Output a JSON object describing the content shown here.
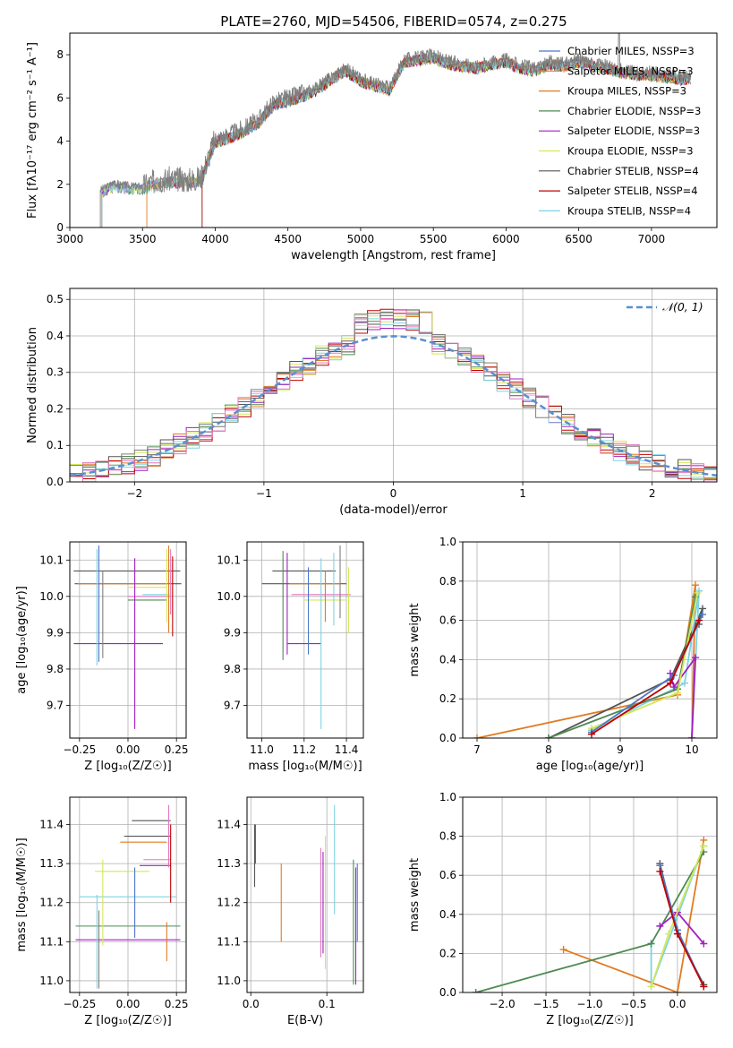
{
  "figure_title": "PLATE=2760, MJD=54506, FIBERID=0574, z=0.275",
  "colors": [
    "#4c78c8",
    "#7f7f7f",
    "#e07b22",
    "#4f8a52",
    "#a020c0",
    "#d4e85a",
    "#555555",
    "#c00000",
    "#7fd3e0",
    "#e377c2"
  ],
  "chart_data": [
    {
      "id": "spectrum",
      "type": "line",
      "title": "PLATE=2760, MJD=54506, FIBERID=0574, z=0.275",
      "xlabel": "wavelength [Angstrom, rest frame]",
      "ylabel": "Flux [fλ10⁻¹⁷ erg cm⁻² s⁻¹ A⁻¹]",
      "xlim": [
        3000,
        7450
      ],
      "ylim": [
        0,
        9
      ],
      "xticks": [
        "3000",
        "3500",
        "4000",
        "4500",
        "5000",
        "5500",
        "6000",
        "6500",
        "7000"
      ],
      "yticks": [
        "0",
        "2",
        "4",
        "6",
        "8"
      ],
      "grid": false,
      "legend_placement": "upper-right",
      "legend": [
        "Chabrier MILES, NSSP=3",
        "Salpeter MILES, NSSP=3",
        "Kroupa MILES, NSSP=3",
        "Chabrier ELODIE, NSSP=3",
        "Salpeter ELODIE, NSSP=3",
        "Kroupa ELODIE, NSSP=3",
        "Chabrier STELIB, NSSP=4",
        "Salpeter STELIB, NSSP=4",
        "Kroupa STELIB, NSSP=4"
      ],
      "data_x": [
        3210,
        3300,
        3400,
        3500,
        3600,
        3700,
        3800,
        3900,
        4000,
        4100,
        4200,
        4300,
        4400,
        4500,
        4600,
        4700,
        4800,
        4900,
        5000,
        5100,
        5200,
        5300,
        5400,
        5500,
        5600,
        5700,
        5800,
        5900,
        6000,
        6100,
        6200,
        6300,
        6400,
        6500,
        6600,
        6700,
        6800,
        6900,
        7000,
        7100,
        7200,
        7300
      ],
      "data_y": [
        1.75,
        2.05,
        1.95,
        1.9,
        2.2,
        2.25,
        2.2,
        2.3,
        4.1,
        4.3,
        4.6,
        5.0,
        5.8,
        6.0,
        6.2,
        6.5,
        7.0,
        7.4,
        6.9,
        6.7,
        6.5,
        7.8,
        7.9,
        8.0,
        7.7,
        7.6,
        7.5,
        7.7,
        7.8,
        7.5,
        7.4,
        7.7,
        7.6,
        7.8,
        7.6,
        7.5,
        7.3,
        7.2,
        7.2,
        7.1,
        7.0,
        7.0
      ],
      "model_start_x": [
        3220,
        3530,
        3530,
        3220,
        3220,
        3220,
        3910,
        3910,
        3220
      ]
    },
    {
      "id": "residuals",
      "type": "line",
      "xlabel": "(data-model)/error",
      "ylabel": "Normed distribution",
      "xlim": [
        -2.5,
        2.5
      ],
      "ylim": [
        0,
        0.53
      ],
      "xticks": [
        "−2",
        "−1",
        "0",
        "1",
        "2"
      ],
      "yticks": [
        "0.0",
        "0.1",
        "0.2",
        "0.3",
        "0.4",
        "0.5"
      ],
      "grid": true,
      "legend_placement": "upper-right",
      "legend": [
        "𝒩(0, 1)"
      ],
      "reference_curve": "normal(0,1) pdf"
    },
    {
      "id": "age-vs-z",
      "type": "scatter",
      "xlabel": "Z [log₁₀(Z/Z☉)]",
      "ylabel": "age  [log₁₀(age/yr)]",
      "xlim": [
        -0.3,
        0.3
      ],
      "ylim": [
        9.61,
        10.15
      ],
      "xticks": [
        "−0.25",
        "0.00",
        "0.25"
      ],
      "yticks": [
        "9.7",
        "9.8",
        "9.9",
        "10.0",
        "10.1"
      ],
      "grid": true,
      "errorbars": [
        {
          "x": -0.005,
          "y": 10.07,
          "xerr": 0.275,
          "yerr": 0
        },
        {
          "x": 0.0,
          "y": 10.035,
          "xerr": 0.275,
          "yerr": 0
        },
        {
          "x": -0.03,
          "y": 10.035,
          "xerr": 0.23,
          "yerr": 0
        },
        {
          "x": 0.11,
          "y": 10.0,
          "xerr": 0.11,
          "yerr": 0
        },
        {
          "x": -0.05,
          "y": 9.87,
          "xerr": 0.23,
          "yerr": 0
        },
        {
          "x": 0.1,
          "y": 10.025,
          "xerr": 0.1,
          "yerr": 0
        },
        {
          "x": 0.145,
          "y": 10.005,
          "xerr": 0.07,
          "yerr": 0
        },
        {
          "x": 0.1,
          "y": 9.99,
          "xerr": 0.1,
          "yerr": 0
        },
        {
          "x": 0.035,
          "y": 9.87,
          "xerr": 0,
          "yerr": 0.235
        },
        {
          "x": -0.15,
          "y": 9.98,
          "xerr": 0,
          "yerr": 0.16
        },
        {
          "x": -0.16,
          "y": 9.97,
          "xerr": 0,
          "yerr": 0.16
        },
        {
          "x": -0.13,
          "y": 9.95,
          "xerr": 0,
          "yerr": 0.12
        },
        {
          "x": 0.2,
          "y": 10.03,
          "xerr": 0,
          "yerr": 0.1
        },
        {
          "x": 0.21,
          "y": 10.02,
          "xerr": 0,
          "yerr": 0.12
        },
        {
          "x": 0.22,
          "y": 10.04,
          "xerr": 0,
          "yerr": 0.09
        },
        {
          "x": 0.23,
          "y": 10.0,
          "xerr": 0,
          "yerr": 0.11
        }
      ]
    },
    {
      "id": "age-vs-mass",
      "type": "scatter",
      "xlabel": "mass [log₁₀(M/M☉)]",
      "ylabel": "",
      "xlim": [
        10.93,
        11.48
      ],
      "ylim": [
        9.61,
        10.15
      ],
      "xticks": [
        "11.0",
        "11.2",
        "11.4"
      ],
      "yticks": [
        "9.7",
        "9.8",
        "9.9",
        "10.0",
        "10.1"
      ],
      "grid": true,
      "errorbars": [
        {
          "x": 11.2,
          "y": 10.07,
          "xerr": 0.15,
          "yerr": 0
        },
        {
          "x": 11.2,
          "y": 10.035,
          "xerr": 0.2,
          "yerr": 0
        },
        {
          "x": 11.25,
          "y": 10.035,
          "xerr": 0.12,
          "yerr": 0
        },
        {
          "x": 11.28,
          "y": 10.005,
          "xerr": 0.14,
          "yerr": 0
        },
        {
          "x": 11.2,
          "y": 9.87,
          "xerr": 0.08,
          "yerr": 0
        },
        {
          "x": 11.3,
          "y": 9.99,
          "xerr": 0.1,
          "yerr": 0
        },
        {
          "x": 11.28,
          "y": 9.87,
          "xerr": 0,
          "yerr": 0.235
        },
        {
          "x": 11.1,
          "y": 9.975,
          "xerr": 0,
          "yerr": 0.15
        },
        {
          "x": 11.12,
          "y": 9.98,
          "xerr": 0,
          "yerr": 0.14
        },
        {
          "x": 11.22,
          "y": 9.96,
          "xerr": 0,
          "yerr": 0.12
        },
        {
          "x": 11.34,
          "y": 10.02,
          "xerr": 0,
          "yerr": 0.1
        },
        {
          "x": 11.37,
          "y": 10.04,
          "xerr": 0,
          "yerr": 0.1
        },
        {
          "x": 11.41,
          "y": 9.99,
          "xerr": 0,
          "yerr": 0.09
        },
        {
          "x": 11.3,
          "y": 10.0,
          "xerr": 0,
          "yerr": 0.07
        }
      ]
    },
    {
      "id": "weight-vs-age",
      "type": "line",
      "xlabel": "age  [log₁₀(age/yr)]",
      "ylabel": "mass weight",
      "xlim": [
        6.8,
        10.35
      ],
      "ylim": [
        0,
        1.0
      ],
      "xticks": [
        "7",
        "8",
        "9",
        "10"
      ],
      "yticks": [
        "0.0",
        "0.2",
        "0.4",
        "0.6",
        "0.8",
        "1.0"
      ],
      "grid": true,
      "series": [
        {
          "x": [
            7.0,
            9.8,
            10.05,
            10.0
          ],
          "y": [
            0.0,
            0.22,
            0.78,
            0.0
          ]
        },
        {
          "x": [
            8.0,
            9.7,
            10.15,
            10.1
          ],
          "y": [
            0.0,
            0.3,
            0.66,
            0.58
          ]
        },
        {
          "x": [
            8.6,
            9.9,
            10.1,
            10.0
          ],
          "y": [
            0.04,
            0.28,
            0.75,
            0.0
          ]
        },
        {
          "x": [
            8.0,
            9.8,
            10.05
          ],
          "y": [
            0.0,
            0.25,
            0.72
          ]
        },
        {
          "x": [
            9.7,
            9.75,
            10.05,
            10.0
          ],
          "y": [
            0.33,
            0.26,
            0.41,
            0.0
          ]
        },
        {
          "x": [
            8.6,
            9.8,
            10.08
          ],
          "y": [
            0.05,
            0.23,
            0.74
          ]
        },
        {
          "x": [
            8.6,
            9.75,
            10.15
          ],
          "y": [
            0.03,
            0.32,
            0.63
          ]
        },
        {
          "x": [
            8.6,
            9.7,
            10.1
          ],
          "y": [
            0.02,
            0.28,
            0.6
          ]
        }
      ]
    },
    {
      "id": "mass-vs-z",
      "type": "scatter",
      "xlabel": "Z [log₁₀(Z/Z☉)]",
      "ylabel": "mass [log₁₀(M/M☉)]",
      "xlim": [
        -0.3,
        0.3
      ],
      "ylim": [
        10.97,
        11.47
      ],
      "xticks": [
        "−0.25",
        "0.00",
        "0.25"
      ],
      "yticks": [
        "11.0",
        "11.1",
        "11.2",
        "11.3",
        "11.4"
      ],
      "grid": true,
      "errorbars": [
        {
          "x": 0.12,
          "y": 11.41,
          "xerr": 0.1,
          "yerr": 0
        },
        {
          "x": 0.1,
          "y": 11.37,
          "xerr": 0.12,
          "yerr": 0
        },
        {
          "x": 0.08,
          "y": 11.355,
          "xerr": 0.12,
          "yerr": 0
        },
        {
          "x": 0.15,
          "y": 11.31,
          "xerr": 0.07,
          "yerr": 0
        },
        {
          "x": 0.14,
          "y": 11.295,
          "xerr": 0.08,
          "yerr": 0
        },
        {
          "x": -0.03,
          "y": 11.28,
          "xerr": 0.14,
          "yerr": 0
        },
        {
          "x": 0.0,
          "y": 11.215,
          "xerr": 0.25,
          "yerr": 0
        },
        {
          "x": 0.0,
          "y": 11.14,
          "xerr": 0.27,
          "yerr": 0
        },
        {
          "x": 0.0,
          "y": 11.105,
          "xerr": 0.27,
          "yerr": 0
        },
        {
          "x": 0.035,
          "y": 11.2,
          "xerr": 0,
          "yerr": 0.09
        },
        {
          "x": -0.16,
          "y": 11.1,
          "xerr": 0,
          "yerr": 0.12
        },
        {
          "x": -0.15,
          "y": 11.08,
          "xerr": 0,
          "yerr": 0.1
        },
        {
          "x": -0.13,
          "y": 11.2,
          "xerr": 0,
          "yerr": 0.11
        },
        {
          "x": 0.2,
          "y": 11.1,
          "xerr": 0,
          "yerr": 0.05
        },
        {
          "x": 0.21,
          "y": 11.37,
          "xerr": 0,
          "yerr": 0.08
        },
        {
          "x": 0.22,
          "y": 11.3,
          "xerr": 0,
          "yerr": 0.1
        }
      ]
    },
    {
      "id": "mass-vs-ebv",
      "type": "scatter",
      "xlabel": "E(B-V)",
      "ylabel": "",
      "xlim": [
        -0.005,
        0.148
      ],
      "ylim": [
        10.97,
        11.47
      ],
      "xticks": [
        "0.0",
        "0.1"
      ],
      "yticks": [
        "11.0",
        "11.1",
        "11.2",
        "11.3",
        "11.4"
      ],
      "grid": true,
      "errorbars": [
        {
          "x": 0.005,
          "y": 11.32,
          "xerr": 0,
          "yerr": 0.08
        },
        {
          "x": 0.006,
          "y": 11.35,
          "xerr": 0,
          "yerr": 0.05
        },
        {
          "x": 0.04,
          "y": 11.2,
          "xerr": 0,
          "yerr": 0.1
        },
        {
          "x": 0.092,
          "y": 11.2,
          "xerr": 0,
          "yerr": 0.14
        },
        {
          "x": 0.095,
          "y": 11.2,
          "xerr": 0,
          "yerr": 0.13
        },
        {
          "x": 0.098,
          "y": 11.2,
          "xerr": 0,
          "yerr": 0.17
        },
        {
          "x": 0.11,
          "y": 11.31,
          "xerr": 0,
          "yerr": 0.14
        },
        {
          "x": 0.135,
          "y": 11.15,
          "xerr": 0,
          "yerr": 0.16
        },
        {
          "x": 0.138,
          "y": 11.14,
          "xerr": 0,
          "yerr": 0.15
        },
        {
          "x": 0.14,
          "y": 11.2,
          "xerr": 0,
          "yerr": 0.1
        }
      ]
    },
    {
      "id": "weight-vs-z",
      "type": "line",
      "xlabel": "Z [log₁₀(Z/Z☉)]",
      "ylabel": "mass weight",
      "xlim": [
        -2.45,
        0.45
      ],
      "ylim": [
        0,
        1.0
      ],
      "xticks": [
        "−2.0",
        "−1.5",
        "−1.0",
        "−0.5",
        "0.0"
      ],
      "yticks": [
        "0.0",
        "0.2",
        "0.4",
        "0.6",
        "0.8",
        "1.0"
      ],
      "grid": true,
      "series": [
        {
          "x": [
            -1.3,
            0.0,
            0.3
          ],
          "y": [
            0.22,
            0.0,
            0.78
          ]
        },
        {
          "x": [
            -0.2,
            0.0,
            0.3
          ],
          "y": [
            0.66,
            0.3,
            0.04
          ]
        },
        {
          "x": [
            -0.3,
            -0.3,
            0.3
          ],
          "y": [
            0.25,
            0.03,
            0.75
          ]
        },
        {
          "x": [
            -2.3,
            -0.3,
            0.3
          ],
          "y": [
            0.0,
            0.25,
            0.72
          ]
        },
        {
          "x": [
            -0.2,
            0.0,
            0.3
          ],
          "y": [
            0.34,
            0.41,
            0.25
          ]
        },
        {
          "x": [
            -0.3,
            -0.1,
            0.3
          ],
          "y": [
            0.03,
            0.3,
            0.75
          ]
        },
        {
          "x": [
            -0.2,
            0.0,
            0.3
          ],
          "y": [
            0.65,
            0.32,
            0.03
          ]
        },
        {
          "x": [
            -0.2,
            0.0,
            0.3
          ],
          "y": [
            0.62,
            0.3,
            0.03
          ]
        }
      ]
    }
  ]
}
